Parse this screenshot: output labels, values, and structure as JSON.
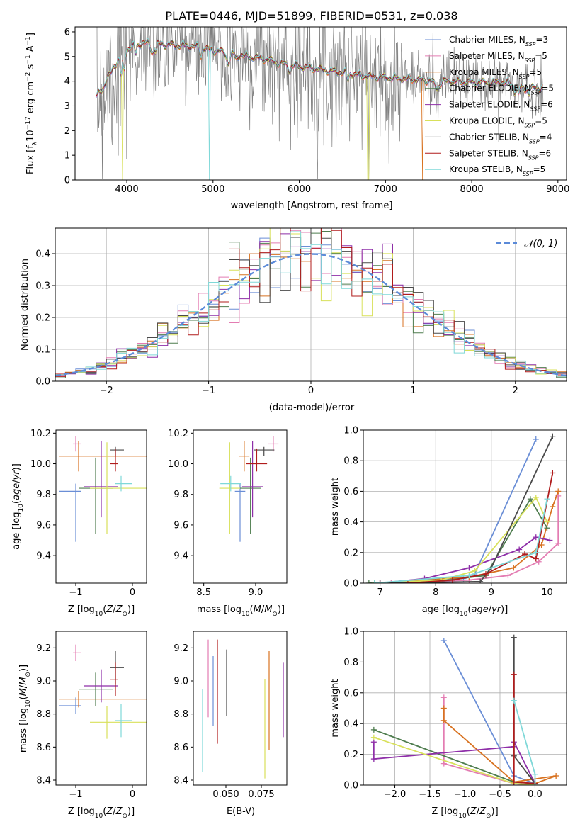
{
  "figure": {
    "title": "PLATE=0446, MJD=51899, FIBERID=0531, z=0.038"
  },
  "chart_data": [
    {
      "id": "spectrum",
      "type": "line",
      "title": "PLATE=0446, MJD=51899, FIBERID=0531, z=0.038",
      "xlabel": "wavelength [Angstrom, rest frame]",
      "ylabel": "Flux [f_λ 10^-17 erg cm^-2 s^-1 A^-1]",
      "xlim": [
        3400,
        9100
      ],
      "ylim": [
        0,
        6.2
      ],
      "xticks": [
        "4000",
        "5000",
        "6000",
        "7000",
        "8000",
        "9000"
      ],
      "yticks": [
        "0",
        "1",
        "2",
        "3",
        "4",
        "5",
        "6"
      ],
      "grid": false,
      "legend_position": "top-right",
      "data_color": "#808080",
      "continuum": {
        "x": [
          3650,
          3750,
          3850,
          3950,
          4050,
          4200,
          4400,
          4600,
          4800,
          5000,
          5200,
          5400,
          5600,
          5800,
          6000,
          6200,
          6400,
          6600,
          6800,
          7000,
          7200,
          7400,
          7600,
          7800,
          8000,
          8200,
          8400,
          8600,
          8800
        ],
        "y": [
          3.4,
          3.9,
          4.6,
          5.1,
          5.4,
          5.55,
          5.5,
          5.45,
          5.4,
          5.25,
          5.15,
          5.0,
          4.9,
          4.7,
          4.6,
          4.5,
          4.4,
          4.3,
          4.2,
          4.15,
          4.1,
          4.05,
          4.0,
          4.0,
          3.95,
          3.95,
          3.95,
          3.7,
          3.75
        ]
      },
      "series": [
        {
          "name": "Chabrier MILES, N_SSP=3",
          "color": "#6a8ed6"
        },
        {
          "name": "Salpeter MILES, N_SSP=5",
          "color": "#e37cb2"
        },
        {
          "name": "Kroupa MILES, N_SSP=5",
          "color": "#d87220"
        },
        {
          "name": "Chabrier ELODIE, N_SSP=5",
          "color": "#4f7d4f"
        },
        {
          "name": "Salpeter ELODIE, N_SSP=6",
          "color": "#8e2ea8"
        },
        {
          "name": "Kroupa ELODIE, N_SSP=5",
          "color": "#d8e05a"
        },
        {
          "name": "Chabrier STELIB, N_SSP=4",
          "color": "#4a4a4a"
        },
        {
          "name": "Salpeter STELIB, N_SSP=6",
          "color": "#b01c1c"
        },
        {
          "name": "Kroupa STELIB, N_SSP=5",
          "color": "#7fd8d8"
        }
      ]
    },
    {
      "id": "residuals",
      "type": "line",
      "xlabel": "(data-model)/error",
      "ylabel": "Normed distribution",
      "xlim": [
        -2.5,
        2.5
      ],
      "ylim": [
        0,
        0.48
      ],
      "xticks": [
        "−2",
        "−1",
        "0",
        "1",
        "2"
      ],
      "yticks": [
        "0.0",
        "0.1",
        "0.2",
        "0.3",
        "0.4"
      ],
      "grid": true,
      "legend_position": "top-right",
      "legend": {
        "label": "𝒩(0, 1)",
        "color": "#5b8ad8"
      },
      "bin_edges": [
        -2.5,
        -2.4,
        -2.3,
        -2.2,
        -2.1,
        -2.0,
        -1.9,
        -1.8,
        -1.7,
        -1.6,
        -1.5,
        -1.4,
        -1.3,
        -1.2,
        -1.1,
        -1.0,
        -0.9,
        -0.8,
        -0.7,
        -0.6,
        -0.5,
        -0.4,
        -0.3,
        -0.2,
        -0.1,
        0.0,
        0.1,
        0.2,
        0.3,
        0.4,
        0.5,
        0.6,
        0.7,
        0.8,
        0.9,
        1.0,
        1.1,
        1.2,
        1.3,
        1.4,
        1.5,
        1.6,
        1.7,
        1.8,
        1.9,
        2.0,
        2.1,
        2.2,
        2.3,
        2.4,
        2.5
      ]
    },
    {
      "id": "age-vs-Z",
      "type": "scatter",
      "xlabel": "Z [log10(Z/Z☉)]",
      "ylabel": "age [log10(age/yr)]",
      "xlim": [
        -1.35,
        0.25
      ],
      "ylim": [
        9.22,
        10.22
      ],
      "xticks": [
        "−1",
        "0"
      ],
      "yticks": [
        "9.4",
        "9.6",
        "9.8",
        "10.0",
        "10.2"
      ],
      "grid": false,
      "points": [
        {
          "series": "Chabrier MILES",
          "x": -1.0,
          "xerr": [
            0.3,
            0.1
          ],
          "y": 9.82,
          "yerr": [
            0.05,
            0.33
          ]
        },
        {
          "series": "Salpeter MILES",
          "x": -1.0,
          "xerr": [
            0.05,
            0.1
          ],
          "y": 10.13,
          "yerr": [
            0.05,
            0.05
          ]
        },
        {
          "series": "Kroupa MILES",
          "x": -0.95,
          "xerr": [
            0.35,
            1.2
          ],
          "y": 10.05,
          "yerr": [
            0.1,
            0.1
          ]
        },
        {
          "series": "Chabrier ELODIE",
          "x": -0.65,
          "xerr": [
            0.3,
            0.3
          ],
          "y": 9.84,
          "yerr": [
            0.2,
            0.3
          ]
        },
        {
          "series": "Salpeter ELODIE",
          "x": -0.55,
          "xerr": [
            0.3,
            0.3
          ],
          "y": 9.85,
          "yerr": [
            0.3,
            0.2
          ]
        },
        {
          "series": "Kroupa ELODIE",
          "x": -0.45,
          "xerr": [
            0.3,
            0.7
          ],
          "y": 9.84,
          "yerr": [
            0.3,
            0.3
          ]
        },
        {
          "series": "Chabrier STELIB",
          "x": -0.3,
          "xerr": [
            0.1,
            0.15
          ],
          "y": 10.09,
          "yerr": [
            0.02,
            0.04
          ]
        },
        {
          "series": "Salpeter STELIB",
          "x": -0.3,
          "xerr": [
            0.1,
            0.05
          ],
          "y": 10.0,
          "yerr": [
            0.1,
            0.05
          ]
        },
        {
          "series": "Kroupa STELIB",
          "x": -0.2,
          "xerr": [
            0.1,
            0.2
          ],
          "y": 9.87,
          "yerr": [
            0.05,
            0.05
          ]
        }
      ]
    },
    {
      "id": "age-vs-mass",
      "type": "scatter",
      "xlabel": "mass [log10(M/M☉)]",
      "ylabel": "",
      "xlim": [
        8.4,
        9.3
      ],
      "ylim": [
        9.22,
        10.22
      ],
      "xticks": [
        "8.5",
        "9.0"
      ],
      "yticks": [
        "9.4",
        "9.6",
        "9.8",
        "10.0",
        "10.2"
      ],
      "grid": false,
      "points": [
        {
          "series": "Chabrier MILES",
          "x": 8.85,
          "xerr": [
            0.05,
            0.05
          ],
          "y": 9.82,
          "yerr": [
            0.05,
            0.33
          ]
        },
        {
          "series": "Salpeter MILES",
          "x": 9.17,
          "xerr": [
            0.05,
            0.05
          ],
          "y": 10.13,
          "yerr": [
            0.05,
            0.05
          ]
        },
        {
          "series": "Kroupa MILES",
          "x": 8.89,
          "xerr": [
            0.05,
            0.05
          ],
          "y": 10.05,
          "yerr": [
            0.1,
            0.1
          ]
        },
        {
          "series": "Chabrier ELODIE",
          "x": 8.95,
          "xerr": [
            0.1,
            0.1
          ],
          "y": 9.84,
          "yerr": [
            0.2,
            0.3
          ]
        },
        {
          "series": "Salpeter ELODIE",
          "x": 8.97,
          "xerr": [
            0.1,
            0.1
          ],
          "y": 9.85,
          "yerr": [
            0.3,
            0.2
          ]
        },
        {
          "series": "Kroupa ELODIE",
          "x": 8.75,
          "xerr": [
            0.1,
            0.1
          ],
          "y": 9.84,
          "yerr": [
            0.3,
            0.3
          ]
        },
        {
          "series": "Chabrier STELIB",
          "x": 9.08,
          "xerr": [
            0.1,
            0.1
          ],
          "y": 10.09,
          "yerr": [
            0.02,
            0.04
          ]
        },
        {
          "series": "Salpeter STELIB",
          "x": 9.01,
          "xerr": [
            0.1,
            0.1
          ],
          "y": 10.0,
          "yerr": [
            0.1,
            0.05
          ]
        },
        {
          "series": "Kroupa STELIB",
          "x": 8.76,
          "xerr": [
            0.1,
            0.1
          ],
          "y": 9.87,
          "yerr": [
            0.05,
            0.05
          ]
        }
      ]
    },
    {
      "id": "weight-vs-age",
      "type": "line",
      "xlabel": "age [log10(age/yr)]",
      "ylabel": "mass weight",
      "xlim": [
        6.7,
        10.35
      ],
      "ylim": [
        0,
        1
      ],
      "xticks": [
        "7",
        "8",
        "9",
        "10"
      ],
      "yticks": [
        "0.0",
        "0.2",
        "0.4",
        "0.6",
        "0.8",
        "1.0"
      ],
      "grid": true
    },
    {
      "id": "mass-vs-Z",
      "type": "scatter",
      "xlabel": "Z [log10(Z/Z☉)]",
      "ylabel": "mass [log10(M/M☉)]",
      "xlim": [
        -1.35,
        0.25
      ],
      "ylim": [
        8.37,
        9.3
      ],
      "xticks": [
        "−1",
        "0"
      ],
      "yticks": [
        "8.4",
        "8.6",
        "8.8",
        "9.0",
        "9.2"
      ],
      "grid": false,
      "points": [
        {
          "series": "Chabrier MILES",
          "x": -1.0,
          "xerr": [
            0.3,
            0.1
          ],
          "y": 8.85,
          "yerr": [
            0.05,
            0.05
          ]
        },
        {
          "series": "Salpeter MILES",
          "x": -1.0,
          "xerr": [
            0.05,
            0.1
          ],
          "y": 9.17,
          "yerr": [
            0.05,
            0.05
          ]
        },
        {
          "series": "Kroupa MILES",
          "x": -0.95,
          "xerr": [
            0.35,
            1.2
          ],
          "y": 8.89,
          "yerr": [
            0.05,
            0.05
          ]
        },
        {
          "series": "Chabrier ELODIE",
          "x": -0.65,
          "xerr": [
            0.3,
            0.3
          ],
          "y": 8.95,
          "yerr": [
            0.1,
            0.1
          ]
        },
        {
          "series": "Salpeter ELODIE",
          "x": -0.55,
          "xerr": [
            0.3,
            0.3
          ],
          "y": 8.97,
          "yerr": [
            0.1,
            0.1
          ]
        },
        {
          "series": "Kroupa ELODIE",
          "x": -0.45,
          "xerr": [
            0.3,
            0.7
          ],
          "y": 8.75,
          "yerr": [
            0.1,
            0.1
          ]
        },
        {
          "series": "Chabrier STELIB",
          "x": -0.3,
          "xerr": [
            0.1,
            0.15
          ],
          "y": 9.08,
          "yerr": [
            0.1,
            0.1
          ]
        },
        {
          "series": "Salpeter STELIB",
          "x": -0.3,
          "xerr": [
            0.1,
            0.05
          ],
          "y": 9.01,
          "yerr": [
            0.1,
            0.1
          ]
        },
        {
          "series": "Kroupa STELIB",
          "x": -0.2,
          "xerr": [
            0.1,
            0.2
          ],
          "y": 8.76,
          "yerr": [
            0.1,
            0.1
          ]
        }
      ]
    },
    {
      "id": "mass-vs-ebv",
      "type": "scatter",
      "xlabel": "E(B-V)",
      "ylabel": "",
      "xlim": [
        0.027,
        0.093
      ],
      "ylim": [
        8.37,
        9.3
      ],
      "xticks": [
        "0.050",
        "0.075"
      ],
      "yticks": [
        "8.4",
        "8.6",
        "8.8",
        "9.0",
        "9.2"
      ],
      "grid": false
    },
    {
      "id": "weight-vs-Z",
      "type": "line",
      "xlabel": "Z [log10(Z/Z☉)]",
      "ylabel": "mass weight",
      "xlim": [
        -2.45,
        0.45
      ],
      "ylim": [
        0,
        1
      ],
      "xticks": [
        "−2.0",
        "−1.5",
        "−1.0",
        "−0.5",
        "0.0"
      ],
      "yticks": [
        "0.0",
        "0.2",
        "0.4",
        "0.6",
        "0.8",
        "1.0"
      ],
      "grid": true
    }
  ]
}
